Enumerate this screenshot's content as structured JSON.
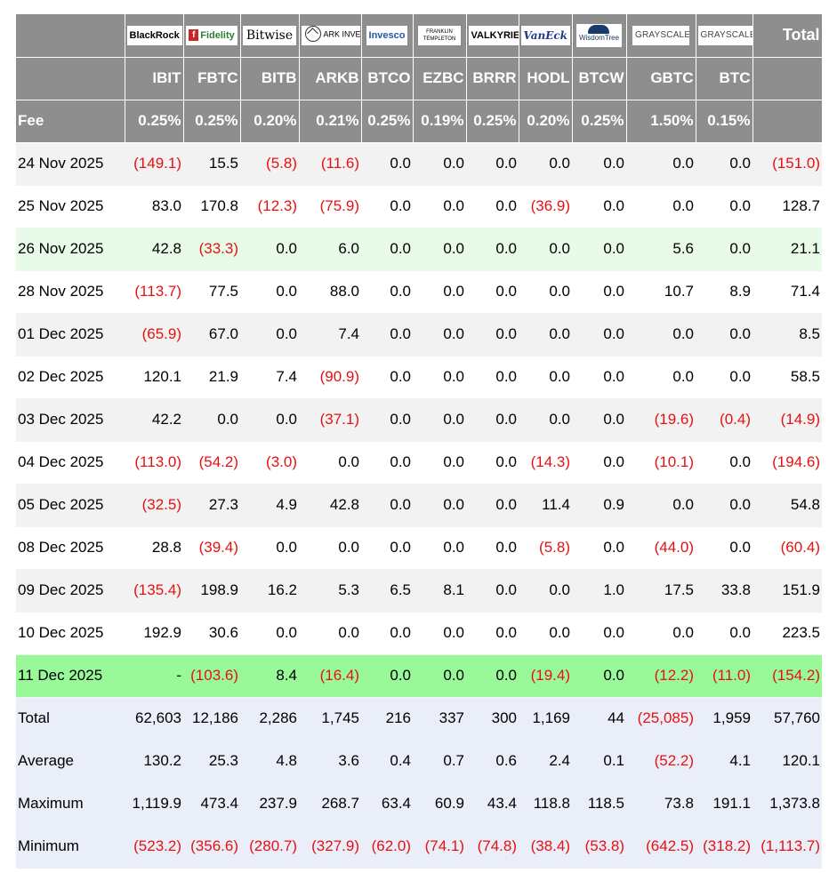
{
  "issuers": [
    {
      "name": "BlackRock",
      "icon": "blackrock-logo"
    },
    {
      "name": "Fidelity",
      "icon": "fidelity-logo"
    },
    {
      "name": "Bitwise",
      "icon": "bitwise-logo"
    },
    {
      "name": "ARK INVEST",
      "icon": "ark-invest-logo"
    },
    {
      "name": "Invesco",
      "icon": "invesco-logo"
    },
    {
      "name": "FRANKLIN TEMPLETON",
      "icon": "franklin-templeton-logo"
    },
    {
      "name": "VALKYRIE",
      "icon": "valkyrie-logo"
    },
    {
      "name": "VanEck",
      "icon": "vaneck-logo"
    },
    {
      "name": "WisdomTree",
      "icon": "wisdomtree-logo"
    },
    {
      "name": "GRAYSCALE",
      "icon": "grayscale-logo"
    },
    {
      "name": "GRAYSCALE",
      "icon": "grayscale-logo"
    }
  ],
  "total_header": "Total",
  "tickers": [
    "IBIT",
    "FBTC",
    "BITB",
    "ARKB",
    "BTCO",
    "EZBC",
    "BRRR",
    "HODL",
    "BTCW",
    "GBTC",
    "BTC"
  ],
  "fee_label": "Fee",
  "fees": [
    "0.25%",
    "0.25%",
    "0.20%",
    "0.21%",
    "0.25%",
    "0.19%",
    "0.25%",
    "0.20%",
    "0.25%",
    "1.50%",
    "0.15%"
  ],
  "rows": [
    {
      "date": "24 Nov 2025",
      "values": [
        "(149.1)",
        "15.5",
        "(5.8)",
        "(11.6)",
        "0.0",
        "0.0",
        "0.0",
        "0.0",
        "0.0",
        "0.0",
        "0.0",
        "(151.0)"
      ]
    },
    {
      "date": "25 Nov 2025",
      "values": [
        "83.0",
        "170.8",
        "(12.3)",
        "(75.9)",
        "0.0",
        "0.0",
        "0.0",
        "(36.9)",
        "0.0",
        "0.0",
        "0.0",
        "128.7"
      ]
    },
    {
      "date": "26 Nov 2025",
      "values": [
        "42.8",
        "(33.3)",
        "0.0",
        "6.0",
        "0.0",
        "0.0",
        "0.0",
        "0.0",
        "0.0",
        "5.6",
        "0.0",
        "21.1"
      ]
    },
    {
      "date": "28 Nov 2025",
      "values": [
        "(113.7)",
        "77.5",
        "0.0",
        "88.0",
        "0.0",
        "0.0",
        "0.0",
        "0.0",
        "0.0",
        "10.7",
        "8.9",
        "71.4"
      ]
    },
    {
      "date": "01 Dec 2025",
      "values": [
        "(65.9)",
        "67.0",
        "0.0",
        "7.4",
        "0.0",
        "0.0",
        "0.0",
        "0.0",
        "0.0",
        "0.0",
        "0.0",
        "8.5"
      ]
    },
    {
      "date": "02 Dec 2025",
      "values": [
        "120.1",
        "21.9",
        "7.4",
        "(90.9)",
        "0.0",
        "0.0",
        "0.0",
        "0.0",
        "0.0",
        "0.0",
        "0.0",
        "58.5"
      ]
    },
    {
      "date": "03 Dec 2025",
      "values": [
        "42.2",
        "0.0",
        "0.0",
        "(37.1)",
        "0.0",
        "0.0",
        "0.0",
        "0.0",
        "0.0",
        "(19.6)",
        "(0.4)",
        "(14.9)"
      ]
    },
    {
      "date": "04 Dec 2025",
      "values": [
        "(113.0)",
        "(54.2)",
        "(3.0)",
        "0.0",
        "0.0",
        "0.0",
        "0.0",
        "(14.3)",
        "0.0",
        "(10.1)",
        "0.0",
        "(194.6)"
      ]
    },
    {
      "date": "05 Dec 2025",
      "values": [
        "(32.5)",
        "27.3",
        "4.9",
        "42.8",
        "0.0",
        "0.0",
        "0.0",
        "11.4",
        "0.9",
        "0.0",
        "0.0",
        "54.8"
      ]
    },
    {
      "date": "08 Dec 2025",
      "values": [
        "28.8",
        "(39.4)",
        "0.0",
        "0.0",
        "0.0",
        "0.0",
        "0.0",
        "(5.8)",
        "0.0",
        "(44.0)",
        "0.0",
        "(60.4)"
      ]
    },
    {
      "date": "09 Dec 2025",
      "values": [
        "(135.4)",
        "198.9",
        "16.2",
        "5.3",
        "6.5",
        "8.1",
        "0.0",
        "0.0",
        "1.0",
        "17.5",
        "33.8",
        "151.9"
      ]
    },
    {
      "date": "10 Dec 2025",
      "values": [
        "192.9",
        "30.6",
        "0.0",
        "0.0",
        "0.0",
        "0.0",
        "0.0",
        "0.0",
        "0.0",
        "0.0",
        "0.0",
        "223.5"
      ]
    },
    {
      "date": "11 Dec 2025",
      "values": [
        "-",
        "(103.6)",
        "8.4",
        "(16.4)",
        "0.0",
        "0.0",
        "0.0",
        "(19.4)",
        "0.0",
        "(12.2)",
        "(11.0)",
        "(154.2)"
      ]
    }
  ],
  "summary": [
    {
      "label": "Total",
      "values": [
        "62,603",
        "12,186",
        "2,286",
        "1,745",
        "216",
        "337",
        "300",
        "1,169",
        "44",
        "(25,085)",
        "1,959",
        "57,760"
      ]
    },
    {
      "label": "Average",
      "values": [
        "130.2",
        "25.3",
        "4.8",
        "3.6",
        "0.4",
        "0.7",
        "0.6",
        "2.4",
        "0.1",
        "(52.2)",
        "4.1",
        "120.1"
      ]
    },
    {
      "label": "Maximum",
      "values": [
        "1,119.9",
        "473.4",
        "237.9",
        "268.7",
        "63.4",
        "60.9",
        "43.4",
        "118.8",
        "118.5",
        "73.8",
        "191.1",
        "1,373.8"
      ]
    },
    {
      "label": "Minimum",
      "values": [
        "(523.2)",
        "(356.6)",
        "(280.7)",
        "(327.9)",
        "(62.0)",
        "(74.1)",
        "(74.8)",
        "(38.4)",
        "(53.8)",
        "(642.5)",
        "(318.2)",
        "(1,113.7)"
      ]
    }
  ],
  "colors": {
    "header_bg": "#8e8e8e",
    "negative": "#e81010",
    "row_alt": "#f2f2f2",
    "row_light_green": "#e8fbe8",
    "row_bright_green": "#99f999",
    "summary_bg": "#eaeef8"
  }
}
